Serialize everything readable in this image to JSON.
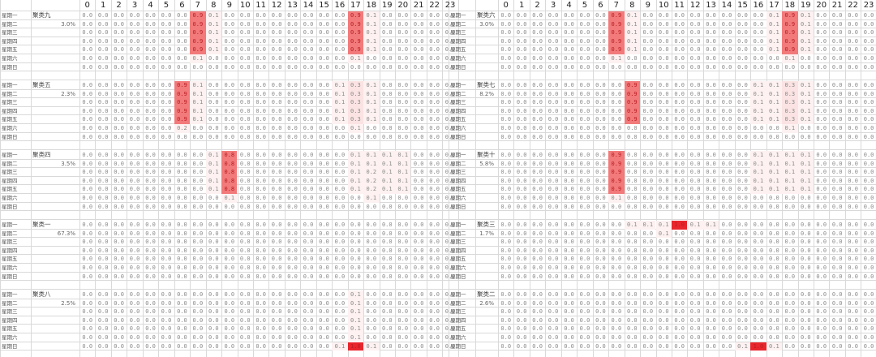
{
  "hours": [
    "0",
    "1",
    "2",
    "3",
    "4",
    "5",
    "6",
    "7",
    "8",
    "9",
    "10",
    "11",
    "12",
    "13",
    "14",
    "15",
    "16",
    "17",
    "18",
    "19",
    "20",
    "21",
    "22",
    "23"
  ],
  "days": [
    "星期一",
    "星期二",
    "星期三",
    "星期四",
    "星期五",
    "星期六",
    "星期日"
  ],
  "colors": {
    "strong": "#e8262c",
    "medium": "#f27a7a",
    "light": "#fbe3e3",
    "faint": "#fdf1f1",
    "grid": "#d9d9d9"
  },
  "panels": [
    {
      "name": "聚类九",
      "pct": "3.0%",
      "hot": {
        "7": [
          0.9,
          0.9,
          0.9,
          0.9,
          0.9,
          0.1,
          0.0
        ],
        "17": [
          0.9,
          0.9,
          0.9,
          0.9,
          0.9,
          0.1,
          0.0
        ],
        "8": [
          0.1,
          0.1,
          0.1,
          0.1,
          0.1,
          0.0,
          0.0
        ],
        "18": [
          0.1,
          0.1,
          0.1,
          0.1,
          0.1,
          0.0,
          0.0
        ],
        "16": [
          0.0,
          0.0,
          0.0,
          0.0,
          0.0,
          0.0,
          0.0
        ]
      }
    },
    {
      "name": "聚类六",
      "pct": "3.0%",
      "hot": {
        "7": [
          0.9,
          0.9,
          0.9,
          0.9,
          0.9,
          0.1,
          0.0
        ],
        "18": [
          0.9,
          0.9,
          0.9,
          0.9,
          0.9,
          0.1,
          0.0
        ],
        "8": [
          0.1,
          0.1,
          0.1,
          0.1,
          0.1,
          0.0,
          0.0
        ],
        "17": [
          0.1,
          0.1,
          0.1,
          0.1,
          0.1,
          0.0,
          0.0
        ],
        "19": [
          0.1,
          0.1,
          0.1,
          0.1,
          0.1,
          0.0,
          0.0
        ]
      }
    },
    {
      "name": "聚类五",
      "pct": "2.3%",
      "hot": {
        "6": [
          0.9,
          0.9,
          0.9,
          0.9,
          0.9,
          0.2,
          0.0
        ],
        "7": [
          0.1,
          0.1,
          0.1,
          0.1,
          0.1,
          0.0,
          0.0
        ],
        "16": [
          0.1,
          0.1,
          0.1,
          0.1,
          0.1,
          0.0,
          0.0
        ],
        "17": [
          0.3,
          0.3,
          0.3,
          0.3,
          0.3,
          0.1,
          0.0
        ],
        "18": [
          0.1,
          0.1,
          0.1,
          0.1,
          0.1,
          0.0,
          0.0
        ]
      }
    },
    {
      "name": "聚类七",
      "pct": "8.2%",
      "hot": {
        "8": [
          0.9,
          0.9,
          0.9,
          0.9,
          0.9,
          0.0,
          0.0
        ],
        "16": [
          0.1,
          0.1,
          0.1,
          0.1,
          0.1,
          0.0,
          0.0
        ],
        "17": [
          0.1,
          0.1,
          0.1,
          0.1,
          0.1,
          0.0,
          0.0
        ],
        "18": [
          0.3,
          0.3,
          0.3,
          0.3,
          0.3,
          0.1,
          0.0
        ],
        "19": [
          0.1,
          0.1,
          0.1,
          0.1,
          0.1,
          0.0,
          0.0
        ]
      }
    },
    {
      "name": "聚类四",
      "pct": "3.5%",
      "hot": {
        "8": [
          0.1,
          0.1,
          0.1,
          0.1,
          0.1,
          0.0,
          0.0
        ],
        "9": [
          0.8,
          0.8,
          0.8,
          0.8,
          0.8,
          0.1,
          0.0
        ],
        "17": [
          0.1,
          0.1,
          0.1,
          0.1,
          0.1,
          0.0,
          0.0
        ],
        "18": [
          0.1,
          0.1,
          0.2,
          0.2,
          0.2,
          0.1,
          0.0
        ],
        "19": [
          0.1,
          0.1,
          0.1,
          0.1,
          0.1,
          0.0,
          0.0
        ],
        "20": [
          0.1,
          0.1,
          0.1,
          0.1,
          0.1,
          0.0,
          0.0
        ]
      }
    },
    {
      "name": "聚类十",
      "pct": "5.8%",
      "hot": {
        "7": [
          0.9,
          0.9,
          0.9,
          0.9,
          0.9,
          0.1,
          0.0
        ],
        "16": [
          0.1,
          0.1,
          0.1,
          0.1,
          0.1,
          0.0,
          0.0
        ],
        "17": [
          0.1,
          0.1,
          0.1,
          0.1,
          0.1,
          0.0,
          0.0
        ],
        "18": [
          0.1,
          0.1,
          0.1,
          0.1,
          0.1,
          0.0,
          0.0
        ],
        "19": [
          0.1,
          0.1,
          0.1,
          0.1,
          0.1,
          0.0,
          0.0
        ]
      }
    },
    {
      "name": "聚类一",
      "pct": "67.3%",
      "hot": {
        "7": [
          0.0,
          0.0,
          0.0,
          0.0,
          0.0,
          0.0,
          0.0
        ]
      }
    },
    {
      "name": "聚类三",
      "pct": "1.7%",
      "hot": {
        "8": [
          0.1,
          0.0,
          0.0,
          0.0,
          0.0,
          0.0,
          0.0
        ],
        "9": [
          0.1,
          0.0,
          0.0,
          0.0,
          0.0,
          0.0,
          0.0
        ],
        "10": [
          0.1,
          0.1,
          0.0,
          0.0,
          0.0,
          0.0,
          0.0
        ],
        "11": [
          1.0,
          0.0,
          0.0,
          0.0,
          0.0,
          0.0,
          0.0
        ],
        "12": [
          0.1,
          0.0,
          0.0,
          0.0,
          0.0,
          0.0,
          0.0
        ],
        "13": [
          0.1,
          0.0,
          0.0,
          0.0,
          0.0,
          0.0,
          0.0
        ]
      }
    },
    {
      "name": "聚类八",
      "pct": "2.5%",
      "hot": {
        "17": [
          0.1,
          0.1,
          0.1,
          0.1,
          0.1,
          0.1,
          1.0
        ],
        "16": [
          0.0,
          0.0,
          0.0,
          0.0,
          0.0,
          0.0,
          0.1
        ],
        "18": [
          0.0,
          0.0,
          0.0,
          0.0,
          0.0,
          0.0,
          0.1
        ]
      }
    },
    {
      "name": "聚类二",
      "pct": "2.6%",
      "hot": {
        "16": [
          0.0,
          0.0,
          0.0,
          0.0,
          0.0,
          0.0,
          1.0
        ],
        "15": [
          0.0,
          0.0,
          0.0,
          0.0,
          0.0,
          0.0,
          0.1
        ],
        "17": [
          0.0,
          0.0,
          0.0,
          0.0,
          0.0,
          0.0,
          0.1
        ]
      }
    }
  ]
}
